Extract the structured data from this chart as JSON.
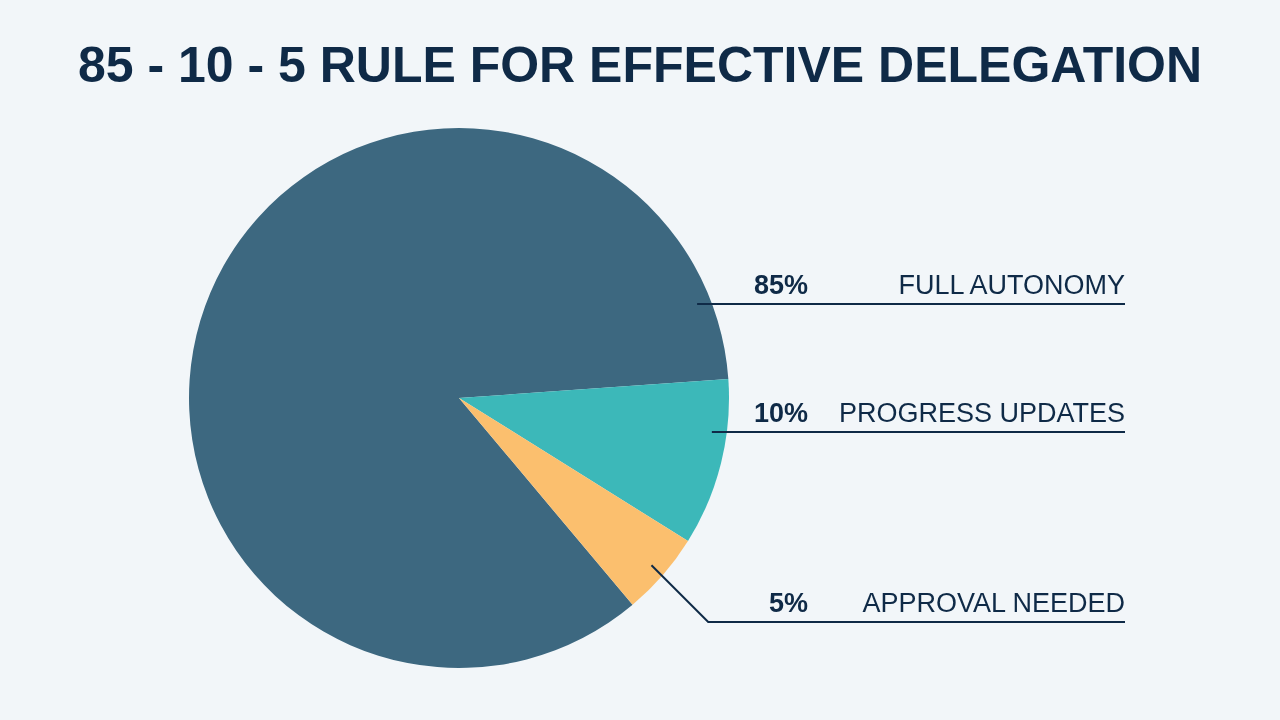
{
  "chart_data": {
    "type": "pie",
    "title": "85 - 10 - 5 RULE FOR EFFECTIVE DELEGATION",
    "categories": [
      "FULL AUTONOMY",
      "PROGRESS UPDATES",
      "APPROVAL NEEDED"
    ],
    "values": [
      85,
      10,
      5
    ],
    "value_labels": [
      "85%",
      "10%",
      "5%"
    ],
    "colors": [
      "#3d6880",
      "#3cb8b9",
      "#fbbf6e"
    ]
  }
}
